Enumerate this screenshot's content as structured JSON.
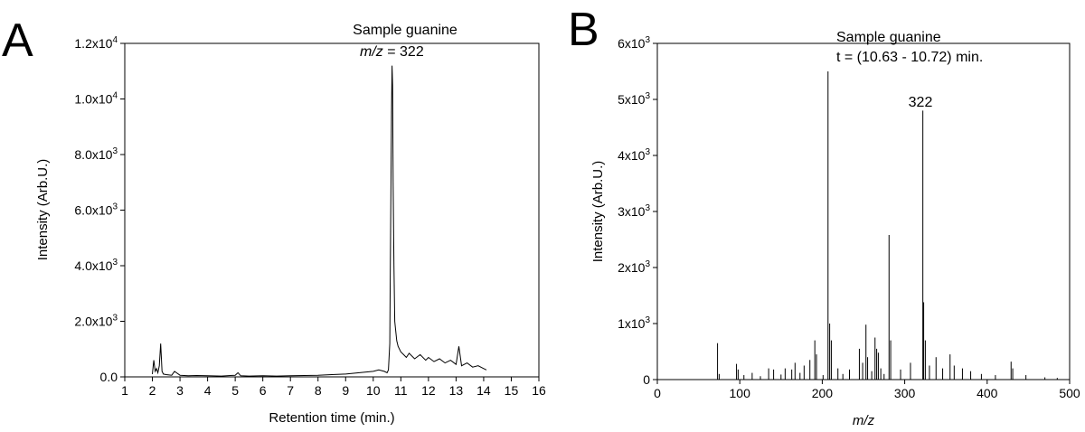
{
  "chart_data": [
    {
      "type": "line",
      "panel_label": "A",
      "xlabel": "Retention time (min.)",
      "ylabel": "Intensity (Arb.U.)",
      "xlim": [
        1,
        16
      ],
      "ylim": [
        0,
        12000
      ],
      "x_ticks": [
        {
          "value": 1,
          "label": "1"
        },
        {
          "value": 2,
          "label": "2"
        },
        {
          "value": 3,
          "label": "3"
        },
        {
          "value": 4,
          "label": "4"
        },
        {
          "value": 5,
          "label": "5"
        },
        {
          "value": 6,
          "label": "6"
        },
        {
          "value": 7,
          "label": "7"
        },
        {
          "value": 8,
          "label": "8"
        },
        {
          "value": 9,
          "label": "9"
        },
        {
          "value": 10,
          "label": "10"
        },
        {
          "value": 11,
          "label": "11"
        },
        {
          "value": 12,
          "label": "12"
        },
        {
          "value": 13,
          "label": "13"
        },
        {
          "value": 14,
          "label": "14"
        },
        {
          "value": 15,
          "label": "15"
        },
        {
          "value": 16,
          "label": "16"
        }
      ],
      "y_ticks": [
        {
          "value": 0,
          "mantissa": "0.0",
          "exp": ""
        },
        {
          "value": 2000,
          "mantissa": "2.0x10",
          "exp": "3"
        },
        {
          "value": 4000,
          "mantissa": "4.0x10",
          "exp": "3"
        },
        {
          "value": 6000,
          "mantissa": "6.0x10",
          "exp": "3"
        },
        {
          "value": 8000,
          "mantissa": "8.0x10",
          "exp": "3"
        },
        {
          "value": 10000,
          "mantissa": "1.0x10",
          "exp": "4"
        },
        {
          "value": 12000,
          "mantissa": "1.2x10",
          "exp": "4"
        }
      ],
      "annotations": {
        "line1": "Sample guanine",
        "mz_italic": "m/z",
        "mz_rest": " = 322"
      },
      "series": [
        {
          "x": [
            2.0,
            2.05,
            2.1,
            2.15,
            2.2,
            2.25,
            2.3,
            2.35,
            2.4,
            2.5,
            2.7,
            2.8,
            3.0,
            3.3,
            3.6,
            4.0,
            4.5,
            5.0,
            5.1,
            5.2,
            5.5,
            6.0,
            6.5,
            7.0,
            7.5,
            8.0,
            8.5,
            9.0,
            9.5,
            10.0,
            10.2,
            10.4,
            10.5,
            10.55,
            10.6,
            10.62,
            10.64,
            10.66,
            10.68,
            10.7,
            10.72,
            10.75,
            10.78,
            10.8,
            10.85,
            10.9,
            11.0,
            11.1,
            11.2,
            11.3,
            11.5,
            11.7,
            11.9,
            12.0,
            12.2,
            12.4,
            12.6,
            12.8,
            13.0,
            13.1,
            13.2,
            13.4,
            13.6,
            13.8,
            14.0,
            14.1
          ],
          "y": [
            100,
            600,
            200,
            300,
            150,
            400,
            1200,
            200,
            100,
            80,
            60,
            200,
            60,
            40,
            50,
            40,
            30,
            60,
            150,
            40,
            30,
            40,
            30,
            40,
            50,
            60,
            80,
            100,
            150,
            200,
            250,
            200,
            150,
            250,
            1200,
            4000,
            6500,
            9500,
            11200,
            10500,
            7000,
            4000,
            2000,
            1800,
            1300,
            1100,
            900,
            800,
            700,
            850,
            650,
            800,
            600,
            700,
            550,
            650,
            500,
            600,
            450,
            1100,
            400,
            500,
            350,
            400,
            300,
            250
          ]
        }
      ]
    },
    {
      "type": "bar",
      "panel_label": "B",
      "xlabel": "m/z",
      "ylabel": "Intensity (Arb.U.)",
      "xlim": [
        0,
        500
      ],
      "ylim": [
        0,
        6000
      ],
      "x_ticks": [
        {
          "value": 0,
          "label": "0"
        },
        {
          "value": 100,
          "label": "100"
        },
        {
          "value": 200,
          "label": "200"
        },
        {
          "value": 300,
          "label": "300"
        },
        {
          "value": 400,
          "label": "400"
        },
        {
          "value": 500,
          "label": "500"
        }
      ],
      "y_ticks": [
        {
          "value": 0,
          "mantissa": "0",
          "exp": ""
        },
        {
          "value": 1000,
          "mantissa": "1x10",
          "exp": "3"
        },
        {
          "value": 2000,
          "mantissa": "2x10",
          "exp": "3"
        },
        {
          "value": 3000,
          "mantissa": "3x10",
          "exp": "3"
        },
        {
          "value": 4000,
          "mantissa": "4x10",
          "exp": "3"
        },
        {
          "value": 5000,
          "mantissa": "5x10",
          "exp": "3"
        },
        {
          "value": 6000,
          "mantissa": "6x10",
          "exp": "3"
        }
      ],
      "annotations": {
        "line1": "Sample guanine",
        "line2": "t = (10.63 - 10.72) min.",
        "peak_label": "322"
      },
      "peaks": [
        {
          "x": 73,
          "y": 650
        },
        {
          "x": 75,
          "y": 100
        },
        {
          "x": 96,
          "y": 280
        },
        {
          "x": 98,
          "y": 180
        },
        {
          "x": 105,
          "y": 80
        },
        {
          "x": 115,
          "y": 120
        },
        {
          "x": 125,
          "y": 60
        },
        {
          "x": 135,
          "y": 200
        },
        {
          "x": 141,
          "y": 180
        },
        {
          "x": 150,
          "y": 90
        },
        {
          "x": 155,
          "y": 200
        },
        {
          "x": 163,
          "y": 180
        },
        {
          "x": 167,
          "y": 300
        },
        {
          "x": 173,
          "y": 120
        },
        {
          "x": 178,
          "y": 250
        },
        {
          "x": 185,
          "y": 350
        },
        {
          "x": 191,
          "y": 700
        },
        {
          "x": 193,
          "y": 450
        },
        {
          "x": 201,
          "y": 80
        },
        {
          "x": 207,
          "y": 5500
        },
        {
          "x": 209,
          "y": 1000
        },
        {
          "x": 211,
          "y": 700
        },
        {
          "x": 219,
          "y": 200
        },
        {
          "x": 225,
          "y": 100
        },
        {
          "x": 233,
          "y": 180
        },
        {
          "x": 245,
          "y": 550
        },
        {
          "x": 249,
          "y": 300
        },
        {
          "x": 253,
          "y": 980
        },
        {
          "x": 255,
          "y": 400
        },
        {
          "x": 260,
          "y": 150
        },
        {
          "x": 264,
          "y": 750
        },
        {
          "x": 266,
          "y": 550
        },
        {
          "x": 268,
          "y": 480
        },
        {
          "x": 271,
          "y": 200
        },
        {
          "x": 275,
          "y": 100
        },
        {
          "x": 281,
          "y": 2580
        },
        {
          "x": 283,
          "y": 700
        },
        {
          "x": 295,
          "y": 180
        },
        {
          "x": 307,
          "y": 300
        },
        {
          "x": 322,
          "y": 4800
        },
        {
          "x": 323,
          "y": 1380
        },
        {
          "x": 325,
          "y": 700
        },
        {
          "x": 330,
          "y": 250
        },
        {
          "x": 338,
          "y": 400
        },
        {
          "x": 346,
          "y": 200
        },
        {
          "x": 355,
          "y": 450
        },
        {
          "x": 360,
          "y": 250
        },
        {
          "x": 370,
          "y": 200
        },
        {
          "x": 380,
          "y": 150
        },
        {
          "x": 393,
          "y": 100
        },
        {
          "x": 410,
          "y": 80
        },
        {
          "x": 429,
          "y": 320
        },
        {
          "x": 431,
          "y": 200
        },
        {
          "x": 447,
          "y": 80
        },
        {
          "x": 470,
          "y": 40
        },
        {
          "x": 485,
          "y": 30
        }
      ]
    }
  ]
}
